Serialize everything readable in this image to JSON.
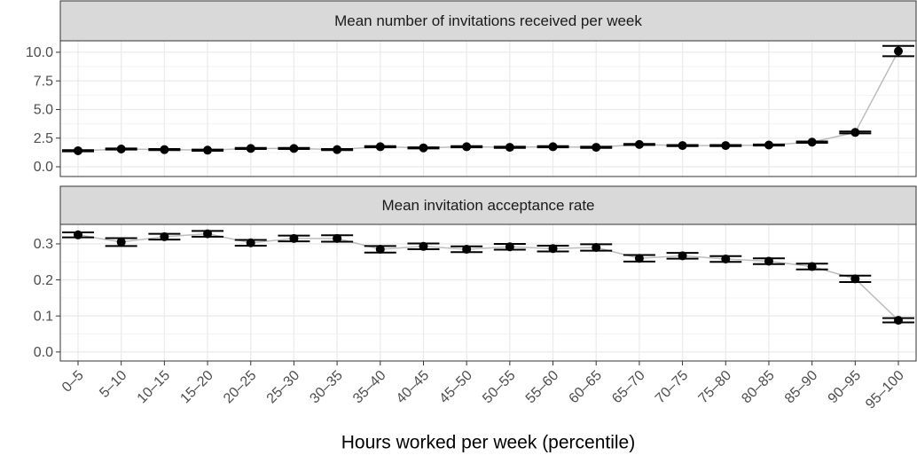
{
  "chart_data": [
    {
      "type": "errorbar",
      "title": "Mean number of invitations received per week",
      "values": [
        1.4,
        1.55,
        1.5,
        1.45,
        1.6,
        1.6,
        1.5,
        1.75,
        1.65,
        1.75,
        1.7,
        1.75,
        1.7,
        1.95,
        1.85,
        1.85,
        1.9,
        2.15,
        3.0,
        10.1
      ],
      "errors": [
        0.05,
        0.05,
        0.05,
        0.05,
        0.05,
        0.05,
        0.05,
        0.05,
        0.05,
        0.05,
        0.05,
        0.05,
        0.05,
        0.05,
        0.05,
        0.05,
        0.05,
        0.06,
        0.08,
        0.45
      ],
      "ylim": [
        -0.85,
        11.0
      ],
      "yticks": [
        {
          "value": 0,
          "label": "0.0"
        },
        2.5,
        {
          "value": 5,
          "label": "5.0"
        },
        7.5,
        {
          "value": 10,
          "label": "10.0"
        }
      ],
      "line_color": "#bdbdbd",
      "color": "#000000",
      "grid": true
    },
    {
      "type": "errorbar",
      "title": "Mean invitation acceptance rate",
      "categories": [
        "0–5",
        "5–10",
        "10–15",
        "15–20",
        "20–25",
        "25–30",
        "30–35",
        "35–40",
        "40–45",
        "45–50",
        "50–55",
        "55–60",
        "60–65",
        "65–70",
        "70–75",
        "75–80",
        "80–85",
        "85–90",
        "90–95",
        "95–100"
      ],
      "xlabel": "Hours worked per week (percentile)",
      "values": [
        0.325,
        0.305,
        0.32,
        0.328,
        0.303,
        0.315,
        0.315,
        0.285,
        0.293,
        0.285,
        0.292,
        0.287,
        0.29,
        0.26,
        0.267,
        0.258,
        0.252,
        0.237,
        0.203,
        0.088
      ],
      "errors": [
        0.007,
        0.011,
        0.008,
        0.008,
        0.008,
        0.008,
        0.009,
        0.009,
        0.008,
        0.008,
        0.008,
        0.008,
        0.009,
        0.009,
        0.008,
        0.008,
        0.008,
        0.008,
        0.009,
        0.006
      ],
      "ylim": [
        -0.025,
        0.354
      ],
      "yticks": [
        {
          "value": 0,
          "label": "0.0"
        },
        0.1,
        0.2,
        0.3
      ],
      "line_color": "#bdbdbd",
      "color": "#000000",
      "grid": true
    }
  ]
}
